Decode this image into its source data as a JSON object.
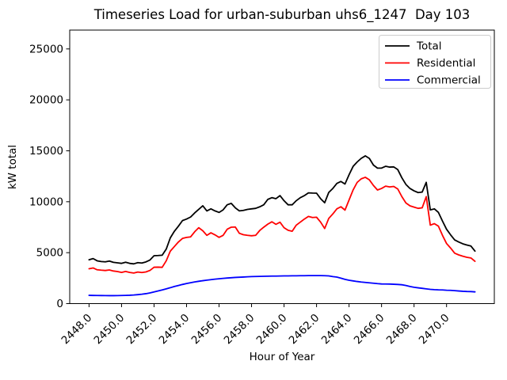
{
  "figure": {
    "title": "Timeseries Load for urban-suburban uhs6_1247  Day 103"
  },
  "chart_data": {
    "type": "line",
    "title": "Timeseries Load for urban-suburban uhs6_1247  Day 103",
    "xlabel": "Hour of Year",
    "ylabel": "kW total",
    "xlim": [
      2446.81,
      2472.94
    ],
    "ylim": [
      0,
      26850
    ],
    "grid": false,
    "x_ticks": [
      2448,
      2450,
      2452,
      2454,
      2456,
      2458,
      2460,
      2462,
      2464,
      2466,
      2468,
      2470
    ],
    "x_tick_labels": [
      "2448.0",
      "2450.0",
      "2452.0",
      "2454.0",
      "2456.0",
      "2458.0",
      "2460.0",
      "2462.0",
      "2464.0",
      "2466.0",
      "2468.0",
      "2470.0"
    ],
    "y_ticks": [
      0,
      5000,
      10000,
      15000,
      20000,
      25000
    ],
    "y_tick_labels": [
      "0",
      "5000",
      "10000",
      "15000",
      "20000",
      "25000"
    ],
    "legend": {
      "position": "upper right",
      "entries": [
        {
          "label": "Total",
          "color": "#000000"
        },
        {
          "label": "Residential",
          "color": "#ff0000"
        },
        {
          "label": "Commercial",
          "color": "#0000ff"
        }
      ]
    },
    "x": [
      2448.0,
      2448.25,
      2448.5,
      2448.75,
      2449.0,
      2449.25,
      2449.5,
      2449.75,
      2450.0,
      2450.25,
      2450.5,
      2450.75,
      2451.0,
      2451.25,
      2451.5,
      2451.75,
      2452.0,
      2452.25,
      2452.5,
      2452.75,
      2453.0,
      2453.25,
      2453.5,
      2453.75,
      2454.0,
      2454.25,
      2454.5,
      2454.75,
      2455.0,
      2455.25,
      2455.5,
      2455.75,
      2456.0,
      2456.25,
      2456.5,
      2456.75,
      2457.0,
      2457.25,
      2457.5,
      2457.75,
      2458.0,
      2458.25,
      2458.5,
      2458.75,
      2459.0,
      2459.25,
      2459.5,
      2459.75,
      2460.0,
      2460.25,
      2460.5,
      2460.75,
      2461.0,
      2461.25,
      2461.5,
      2461.75,
      2462.0,
      2462.25,
      2462.5,
      2462.75,
      2463.0,
      2463.25,
      2463.5,
      2463.75,
      2464.0,
      2464.25,
      2464.5,
      2464.75,
      2465.0,
      2465.25,
      2465.5,
      2465.75,
      2466.0,
      2466.25,
      2466.5,
      2466.75,
      2467.0,
      2467.25,
      2467.5,
      2467.75,
      2468.0,
      2468.25,
      2468.5,
      2468.75,
      2469.0,
      2469.25,
      2469.5,
      2469.75,
      2470.0,
      2470.25,
      2470.5,
      2470.75,
      2471.0,
      2471.25,
      2471.5,
      2471.75
    ],
    "series": [
      {
        "name": "Total",
        "color": "#000000",
        "values": [
          4300,
          4420,
          4200,
          4130,
          4100,
          4180,
          4050,
          4000,
          3950,
          4060,
          3950,
          3900,
          4020,
          3980,
          4090,
          4280,
          4700,
          4720,
          4750,
          5350,
          6450,
          7100,
          7600,
          8150,
          8300,
          8500,
          8900,
          9250,
          9600,
          9100,
          9300,
          9100,
          8950,
          9200,
          9700,
          9840,
          9400,
          9100,
          9150,
          9250,
          9300,
          9350,
          9500,
          9700,
          10230,
          10400,
          10300,
          10600,
          10100,
          9700,
          9700,
          10100,
          10400,
          10600,
          10870,
          10850,
          10840,
          10300,
          9900,
          10910,
          11300,
          11800,
          11990,
          11740,
          12650,
          13470,
          13900,
          14260,
          14500,
          14250,
          13600,
          13300,
          13300,
          13480,
          13400,
          13420,
          13150,
          12350,
          11700,
          11300,
          11070,
          10900,
          10950,
          11900,
          9200,
          9300,
          8950,
          8100,
          7300,
          6750,
          6250,
          6050,
          5870,
          5750,
          5650,
          5150
        ]
      },
      {
        "name": "Residential",
        "color": "#ff0000",
        "values": [
          3420,
          3500,
          3320,
          3280,
          3250,
          3300,
          3200,
          3150,
          3060,
          3160,
          3060,
          3000,
          3100,
          3050,
          3110,
          3260,
          3570,
          3580,
          3560,
          4200,
          5150,
          5600,
          6050,
          6400,
          6500,
          6550,
          7050,
          7450,
          7150,
          6700,
          6950,
          6750,
          6500,
          6700,
          7300,
          7500,
          7520,
          6900,
          6760,
          6700,
          6660,
          6700,
          7170,
          7500,
          7800,
          8030,
          7780,
          7990,
          7450,
          7200,
          7100,
          7700,
          8000,
          8300,
          8560,
          8450,
          8480,
          8000,
          7370,
          8360,
          8800,
          9300,
          9510,
          9180,
          10170,
          11160,
          11900,
          12250,
          12400,
          12150,
          11600,
          11150,
          11300,
          11530,
          11450,
          11500,
          11250,
          10500,
          9880,
          9600,
          9470,
          9350,
          9400,
          10500,
          7700,
          7850,
          7600,
          6700,
          5900,
          5450,
          4950,
          4780,
          4650,
          4550,
          4480,
          4150
        ]
      },
      {
        "name": "Commercial",
        "color": "#0000ff",
        "values": [
          810,
          800,
          795,
          790,
          785,
          780,
          780,
          785,
          795,
          805,
          820,
          845,
          880,
          920,
          975,
          1050,
          1150,
          1240,
          1340,
          1450,
          1560,
          1680,
          1780,
          1880,
          1970,
          2050,
          2130,
          2190,
          2250,
          2300,
          2350,
          2400,
          2440,
          2480,
          2510,
          2540,
          2570,
          2590,
          2610,
          2630,
          2650,
          2660,
          2670,
          2680,
          2690,
          2700,
          2700,
          2710,
          2720,
          2720,
          2730,
          2730,
          2740,
          2740,
          2750,
          2750,
          2750,
          2750,
          2740,
          2720,
          2650,
          2600,
          2500,
          2380,
          2290,
          2230,
          2170,
          2120,
          2080,
          2040,
          2000,
          1960,
          1930,
          1925,
          1920,
          1900,
          1880,
          1850,
          1780,
          1680,
          1600,
          1550,
          1500,
          1450,
          1400,
          1370,
          1350,
          1340,
          1310,
          1300,
          1270,
          1240,
          1210,
          1190,
          1180,
          1150
        ]
      }
    ]
  }
}
